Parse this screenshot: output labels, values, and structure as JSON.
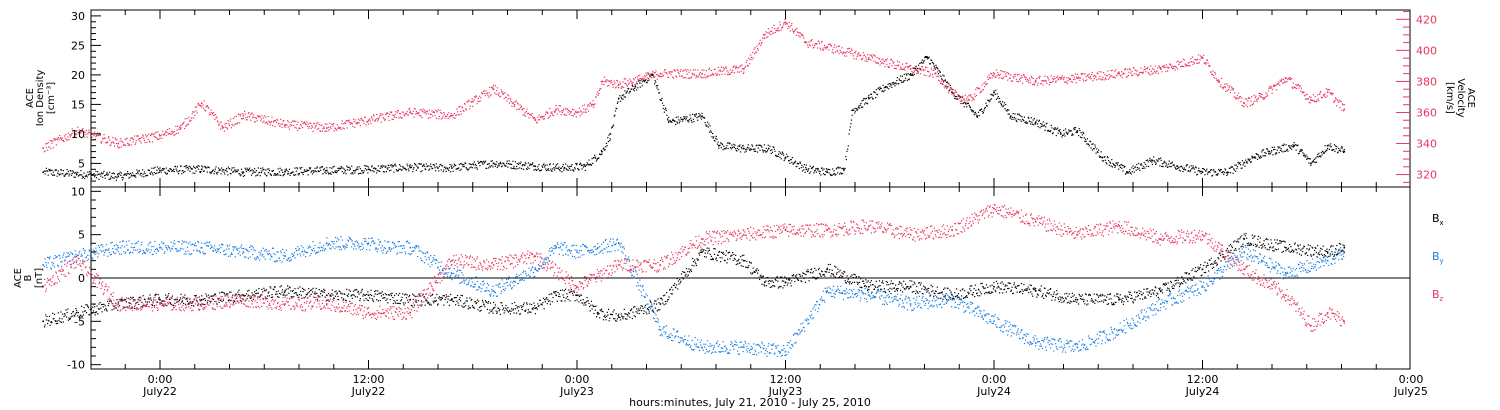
{
  "x_axis": {
    "title": "hours:minutes, July 21, 2010 - July 25, 2010",
    "ticks": [
      {
        "t": 0.0,
        "time": "0:00",
        "date": "July22"
      },
      {
        "t": 0.5,
        "time": "12:00",
        "date": "July22"
      },
      {
        "t": 1.0,
        "time": "0:00",
        "date": "July23"
      },
      {
        "t": 1.5,
        "time": "12:00",
        "date": "July23"
      },
      {
        "t": 2.0,
        "time": "0:00",
        "date": "July24"
      },
      {
        "t": 2.5,
        "time": "12:00",
        "date": "July24"
      },
      {
        "t": 3.0,
        "time": "0:00",
        "date": "July25"
      }
    ]
  },
  "panels": {
    "top": {
      "left_label_lines": [
        "ACE",
        "Ion Density",
        "[cm⁻³]"
      ],
      "right_label_lines": [
        "ACE",
        "Velocity",
        "[km/s]"
      ],
      "left_ticks": [
        "5",
        "10",
        "15",
        "20",
        "25",
        "30"
      ],
      "right_ticks": [
        "320",
        "340",
        "360",
        "380",
        "400",
        "420"
      ]
    },
    "bottom": {
      "left_label_lines": [
        "ACE",
        "B",
        "[nT]"
      ],
      "left_ticks": [
        "-10",
        "-5",
        "0",
        "5",
        "10"
      ],
      "legend": [
        {
          "label": "B",
          "sub": "x",
          "color": "#000000"
        },
        {
          "label": "B",
          "sub": "y",
          "color": "#1a7fe0"
        },
        {
          "label": "B",
          "sub": "z",
          "color": "#e8365f"
        }
      ]
    }
  },
  "colors": {
    "density": "#000000",
    "velocity": "#e8365f",
    "bx": "#000000",
    "by": "#1a7fe0",
    "bz": "#e8365f"
  },
  "chart_data": [
    {
      "type": "scatter",
      "x_units": "days after 2010-07-22 00:00",
      "xlim": [
        -0.28,
        3.0
      ],
      "ylim_left": [
        1,
        31
      ],
      "ylim_right": [
        312,
        426
      ],
      "series": [
        {
          "name": "Ion Density",
          "axis": "left",
          "color": "#000000",
          "x": [
            -0.28,
            -0.2,
            -0.1,
            0.0,
            0.1,
            0.2,
            0.3,
            0.4,
            0.5,
            0.6,
            0.7,
            0.8,
            0.9,
            0.97,
            1.02,
            1.06,
            1.08,
            1.1,
            1.14,
            1.18,
            1.22,
            1.3,
            1.34,
            1.4,
            1.46,
            1.5,
            1.55,
            1.6,
            1.64,
            1.66,
            1.7,
            1.74,
            1.8,
            1.84,
            1.9,
            1.96,
            2.0,
            2.04,
            2.1,
            2.16,
            2.2,
            2.26,
            2.32,
            2.38,
            2.44,
            2.5,
            2.56,
            2.62,
            2.66,
            2.72,
            2.76,
            2.8,
            2.84
          ],
          "y": [
            3.5,
            3.2,
            2.8,
            3.8,
            4.0,
            3.5,
            3.6,
            3.8,
            4.0,
            4.3,
            4.2,
            5.0,
            4.5,
            4.2,
            4.5,
            7.0,
            10.0,
            16.0,
            18.0,
            20.0,
            12.0,
            13.0,
            8.0,
            7.5,
            7.5,
            6.0,
            4.0,
            3.5,
            4.0,
            14.0,
            16.0,
            18.0,
            20.0,
            23.0,
            17.0,
            13.0,
            17.0,
            13.0,
            12.0,
            10.0,
            10.5,
            6.0,
            3.5,
            5.5,
            4.5,
            3.5,
            3.5,
            6.0,
            7.0,
            8.0,
            5.0,
            8.0,
            7.0
          ]
        },
        {
          "name": "Velocity",
          "axis": "right",
          "color": "#e8365f",
          "x": [
            -0.28,
            -0.2,
            -0.1,
            0.0,
            0.05,
            0.1,
            0.15,
            0.2,
            0.3,
            0.4,
            0.5,
            0.6,
            0.7,
            0.75,
            0.8,
            0.85,
            0.9,
            0.95,
            1.0,
            1.04,
            1.06,
            1.1,
            1.2,
            1.3,
            1.4,
            1.45,
            1.5,
            1.55,
            1.6,
            1.7,
            1.8,
            1.86,
            1.9,
            1.94,
            2.0,
            2.1,
            2.2,
            2.3,
            2.4,
            2.5,
            2.54,
            2.6,
            2.64,
            2.7,
            2.76,
            2.8,
            2.84
          ],
          "y": [
            337,
            348,
            340,
            345,
            350,
            366,
            350,
            358,
            352,
            350,
            355,
            360,
            358,
            367,
            375,
            365,
            355,
            362,
            360,
            365,
            380,
            378,
            385,
            385,
            388,
            410,
            418,
            405,
            402,
            395,
            388,
            385,
            372,
            368,
            385,
            380,
            382,
            385,
            388,
            395,
            380,
            366,
            370,
            382,
            368,
            373,
            362
          ]
        }
      ]
    },
    {
      "type": "scatter",
      "x_units": "days after 2010-07-22 00:00",
      "xlim": [
        -0.28,
        3.0
      ],
      "ylim": [
        -10.5,
        10.5
      ],
      "series": [
        {
          "name": "Bx",
          "color": "#000000",
          "x": [
            -0.28,
            -0.2,
            -0.1,
            0.0,
            0.1,
            0.2,
            0.3,
            0.4,
            0.5,
            0.6,
            0.7,
            0.8,
            0.9,
            0.95,
            1.0,
            1.05,
            1.1,
            1.2,
            1.3,
            1.4,
            1.45,
            1.5,
            1.6,
            1.7,
            1.8,
            1.9,
            2.0,
            2.1,
            2.2,
            2.3,
            2.4,
            2.5,
            2.6,
            2.7,
            2.8,
            2.84
          ],
          "y": [
            -5.0,
            -4.0,
            -3.0,
            -2.5,
            -2.5,
            -2.0,
            -1.5,
            -2.0,
            -2.0,
            -2.5,
            -2.5,
            -3.5,
            -3.5,
            -2.0,
            -2.0,
            -4.0,
            -4.5,
            -3.0,
            3.0,
            2.0,
            -0.5,
            -0.5,
            1.0,
            -1.0,
            -1.0,
            -2.0,
            -1.0,
            -1.5,
            -2.5,
            -2.5,
            -1.5,
            1.0,
            4.5,
            3.5,
            3.0,
            3.5
          ]
        },
        {
          "name": "By",
          "color": "#1a7fe0",
          "x": [
            -0.28,
            -0.2,
            -0.1,
            0.0,
            0.1,
            0.2,
            0.3,
            0.4,
            0.5,
            0.55,
            0.6,
            0.7,
            0.8,
            0.9,
            0.95,
            1.0,
            1.05,
            1.1,
            1.2,
            1.3,
            1.4,
            1.5,
            1.6,
            1.7,
            1.8,
            1.9,
            2.0,
            2.1,
            2.2,
            2.3,
            2.4,
            2.5,
            2.6,
            2.7,
            2.8,
            2.84
          ],
          "y": [
            1.5,
            2.5,
            3.5,
            3.5,
            3.5,
            3.0,
            2.5,
            4.0,
            4.0,
            3.5,
            3.5,
            0.5,
            -1.5,
            1.0,
            3.5,
            3.0,
            3.5,
            4.0,
            -6.0,
            -8.0,
            -8.0,
            -8.5,
            -1.5,
            -2.0,
            -3.0,
            -2.5,
            -5.0,
            -7.5,
            -8.0,
            -6.0,
            -3.0,
            -1.0,
            3.0,
            0.5,
            2.0,
            3.0
          ]
        },
        {
          "name": "Bz",
          "color": "#e8365f",
          "x": [
            -0.28,
            -0.2,
            -0.1,
            0.0,
            0.1,
            0.2,
            0.3,
            0.4,
            0.5,
            0.6,
            0.7,
            0.8,
            0.9,
            1.0,
            1.1,
            1.2,
            1.3,
            1.4,
            1.5,
            1.6,
            1.7,
            1.8,
            1.9,
            2.0,
            2.1,
            2.2,
            2.3,
            2.4,
            2.5,
            2.6,
            2.7,
            2.76,
            2.8,
            2.84
          ],
          "y": [
            -1.0,
            2.0,
            -3.0,
            -3.0,
            -3.0,
            -2.5,
            -3.0,
            -3.0,
            -4.0,
            -4.0,
            2.0,
            1.5,
            2.5,
            -1.0,
            1.5,
            1.5,
            4.5,
            5.0,
            5.5,
            5.5,
            6.0,
            5.0,
            5.5,
            8.0,
            6.5,
            5.0,
            6.0,
            4.5,
            5.0,
            1.0,
            -2.0,
            -5.5,
            -4.0,
            -5.0
          ]
        }
      ]
    }
  ]
}
